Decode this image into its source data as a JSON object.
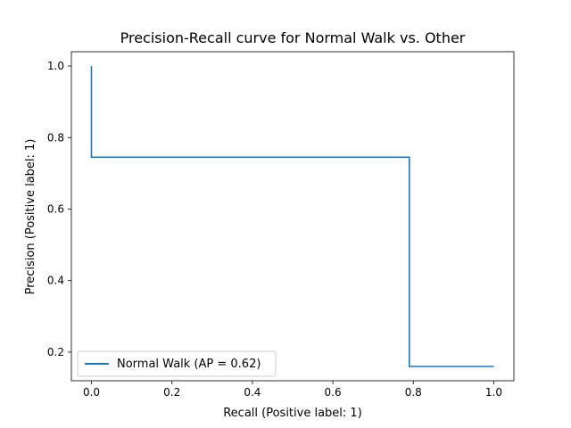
{
  "chart_data": {
    "type": "line",
    "title": "Precision-Recall curve for Normal Walk vs. Other",
    "xlabel": "Recall (Positive label: 1)",
    "ylabel": "Precision (Positive label: 1)",
    "xlim": [
      -0.05,
      1.05
    ],
    "ylim": [
      0.12,
      1.04
    ],
    "x_ticks": [
      0.0,
      0.2,
      0.4,
      0.6,
      0.8,
      1.0
    ],
    "y_ticks": [
      0.2,
      0.4,
      0.6,
      0.8,
      1.0
    ],
    "x_tick_labels": [
      "0.0",
      "0.2",
      "0.4",
      "0.6",
      "0.8",
      "1.0"
    ],
    "y_tick_labels": [
      "0.2",
      "0.4",
      "0.6",
      "0.8",
      "1.0"
    ],
    "grid": false,
    "legend_position": "lower-left",
    "series": [
      {
        "name": "Normal Walk (AP = 0.62)",
        "color": "#1f77b4",
        "step": true,
        "x": [
          0.0,
          0.0,
          0.79,
          0.79,
          1.0
        ],
        "y": [
          1.0,
          0.745,
          0.745,
          0.16,
          0.16
        ]
      }
    ]
  }
}
